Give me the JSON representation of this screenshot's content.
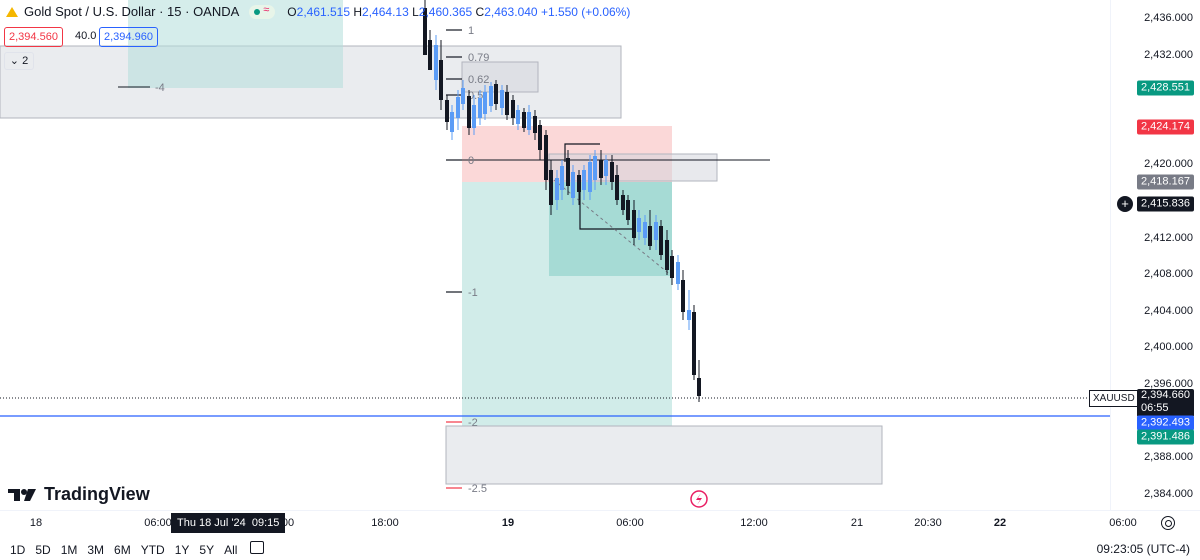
{
  "legend": {
    "symbol_title": "Gold Spot / U.S. Dollar · 15 · OANDA",
    "open_label": "O",
    "open": "2,461.515",
    "high_label": "H",
    "high": "2,464.13",
    "low_label": "L",
    "low": "2,460.365",
    "close_label": "C",
    "close": "2,463.040",
    "change": "+1.550 (+0.06%)",
    "sell_price": "2,394.560",
    "spread": "40.0",
    "buy_price": "2,394.960",
    "indicators_count": "2"
  },
  "fib_levels": [
    {
      "label": "1"
    },
    {
      "label": "0.79"
    },
    {
      "label": "0.62"
    },
    {
      "label": "0.5"
    },
    {
      "label": "0"
    },
    {
      "label": "-1"
    },
    {
      "label": "-2"
    },
    {
      "label": "-2.5"
    }
  ],
  "misc_labels": {
    "left_level": "-4",
    "crosshair_date": "Thu 18 Jul '24",
    "crosshair_time": "09:15"
  },
  "price_axis": {
    "ticks": [
      "2,436.000",
      "2,432.000",
      "2,428.000",
      "2,424.000",
      "2,420.000",
      "2,416.000",
      "2,412.000",
      "2,408.000",
      "2,404.000",
      "2,400.000",
      "2,396.000",
      "2,392.000",
      "2,388.000",
      "2,384.000"
    ],
    "tags": {
      "green_top": "2,428.551",
      "red": "2,424.174",
      "grey": "2,418.167",
      "crosshair": "2,415.836",
      "symbol": "XAUUSD",
      "last": "2,394.660",
      "countdown": "06:55",
      "blue": "2,392.493",
      "green_bottom": "2,391.486"
    }
  },
  "time_axis": {
    "ticks": [
      "18",
      "06:00",
      "00",
      "18:00",
      "19",
      "06:00",
      "12:00",
      "21",
      "20:30",
      "22",
      "06:00"
    ]
  },
  "brand": "TradingView",
  "bottom_bar": {
    "ranges": [
      "1D",
      "5D",
      "1M",
      "3M",
      "6M",
      "YTD",
      "1Y",
      "5Y",
      "All"
    ],
    "clock": "09:23:05 (UTC-4)"
  },
  "colors": {
    "up": "#5b9cf6",
    "down": "#131722",
    "green_tag": "#089981",
    "red_tag": "#f23645",
    "blue_line": "#2962ff",
    "grey_tag": "#787b86"
  },
  "chart_data": {
    "type": "candlestick",
    "last_price": 2394.66,
    "y_range": [
      2383.0,
      2438.5
    ],
    "horizontal_lines": [
      2392.493,
      2420.0
    ]
  }
}
